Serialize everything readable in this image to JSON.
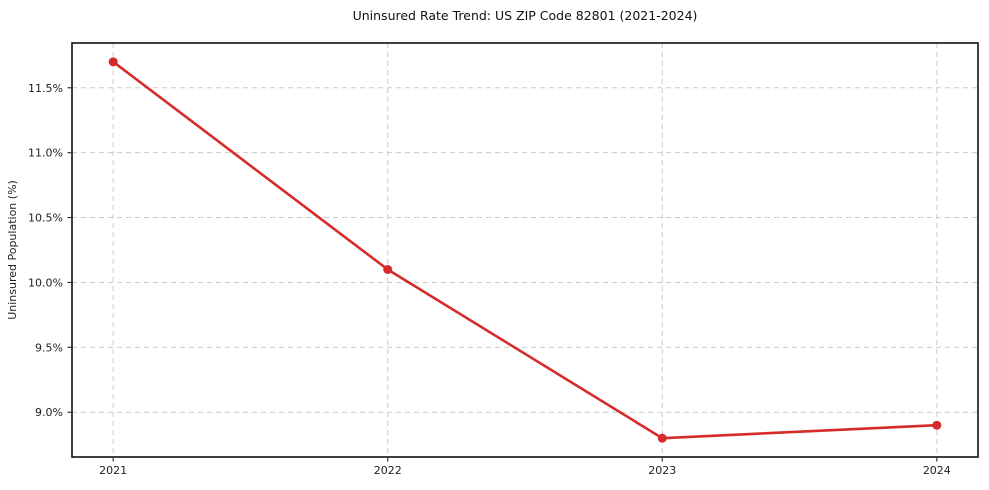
{
  "chart_data": {
    "type": "line",
    "title": "Uninsured Rate Trend: US ZIP Code 82801 (2021-2024)",
    "xlabel": "",
    "ylabel": "Uninsured Population (%)",
    "categories": [
      "2021",
      "2022",
      "2023",
      "2024"
    ],
    "series": [
      {
        "name": "Uninsured Rate",
        "values": [
          11.7,
          10.1,
          8.8,
          8.9
        ]
      }
    ],
    "ytick_labels": [
      "9.0%",
      "9.5%",
      "10.0%",
      "10.5%",
      "11.0%",
      "11.5%"
    ],
    "ytick_values": [
      9.0,
      9.5,
      10.0,
      10.5,
      11.0,
      11.5
    ],
    "ylim": [
      8.655,
      11.845
    ],
    "x_margin_fraction": 0.15,
    "grid": "dashed",
    "legend": "none",
    "colors": {
      "line": "#d62b2a",
      "marker": "#d62b2a",
      "grid": "#cbcbcb",
      "frame": "#111111",
      "tick": "#333333",
      "background": "#ffffff"
    }
  }
}
